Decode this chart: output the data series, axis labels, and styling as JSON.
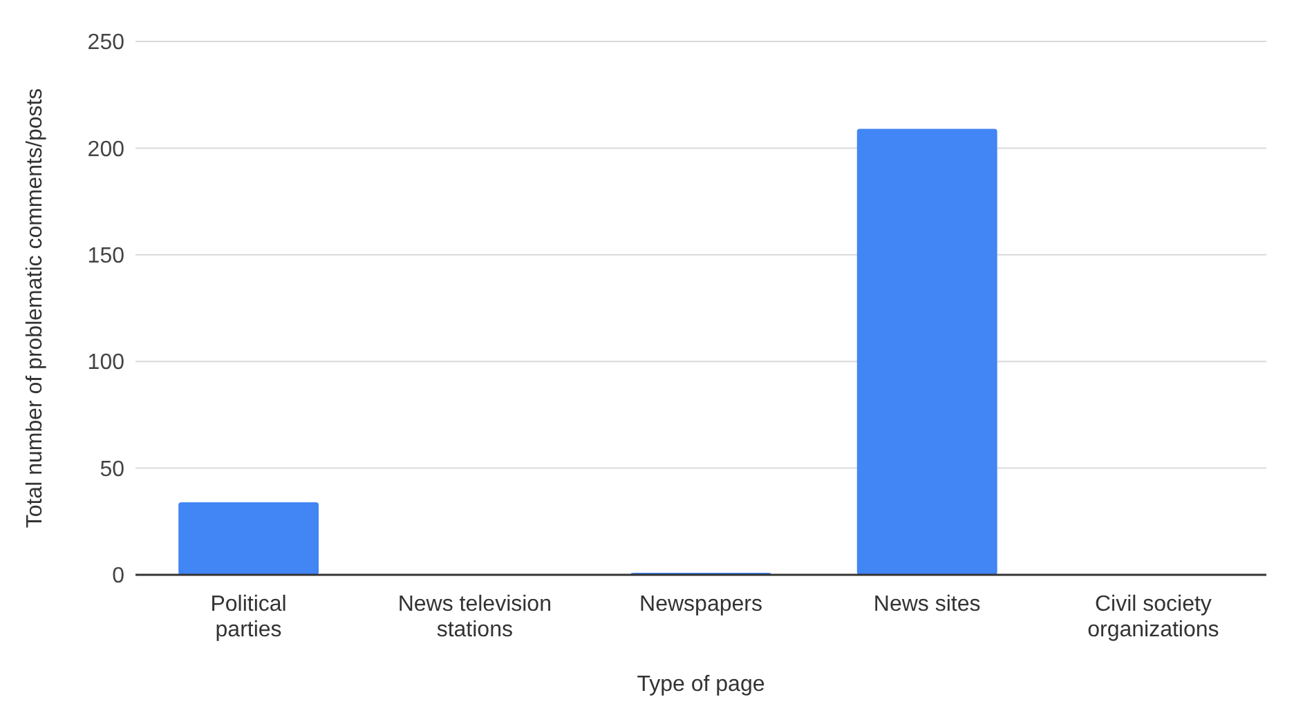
{
  "chart_data": {
    "type": "bar",
    "xlabel": "Type of page",
    "ylabel": "Total number of problematic comments/posts",
    "categories": [
      "Political parties",
      "News television stations",
      "Newspapers",
      "News sites",
      "Civil society organizations"
    ],
    "values": [
      34,
      0,
      1,
      209,
      0
    ],
    "color": "#4285f4",
    "ylim": [
      0,
      250
    ],
    "yticks": [
      0,
      50,
      100,
      150,
      200,
      250
    ],
    "grid": "y"
  }
}
